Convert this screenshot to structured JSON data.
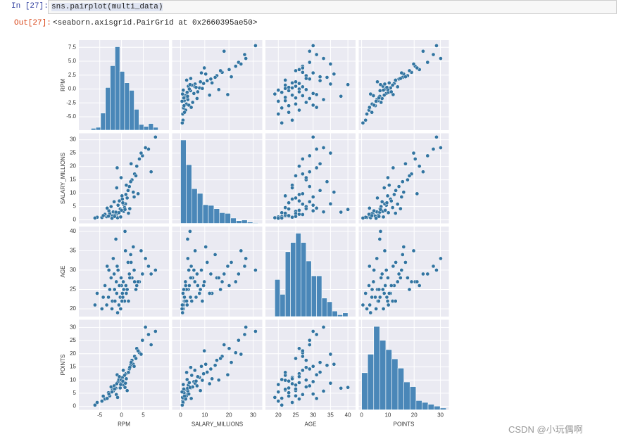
{
  "cell": {
    "prompt_in": "In  [27]:",
    "code": "sns.pairplot(multi_data)",
    "prompt_out": "Out[27]:",
    "output": "<seaborn.axisgrid.PairGrid at 0x2660395ae50>"
  },
  "watermark": "CSDN @小玩偶啊",
  "chart_data": {
    "type": "pairplot",
    "color": "#3274a1",
    "hist_color": "#4a87b8",
    "panel_color": "#eaeaf2",
    "grid": true,
    "variables": [
      {
        "name": "RPM",
        "xlim": [
          -9.8,
          10.9
        ],
        "ylim": [
          -7.4,
          8.8
        ],
        "xticks": [
          -5,
          0,
          5
        ],
        "yticks": [
          {
            "value": -5,
            "label": "-5.0"
          },
          -2.5,
          {
            "value": 0,
            "label": "0.0"
          },
          2.5,
          {
            "value": 5,
            "label": "5.0"
          },
          7.5
        ],
        "values": [
          -2.1,
          0.5,
          -1.2,
          1.8,
          3.5,
          -3.4,
          -0.8,
          0.2,
          2.4,
          -4.5,
          6.2,
          -1.9,
          1.0,
          -0.3,
          4.8,
          -2.7,
          0.9,
          -1.5,
          3.0,
          -5.6,
          1.5,
          -0.6,
          7.8,
          -2.4,
          0.0,
          2.1,
          -3.0,
          1.3,
          -1.0,
          4.1,
          -0.9,
          0.7,
          -3.8,
          2.7,
          -1.7,
          5.5,
          -0.2,
          1.1,
          -2.9,
          0.4,
          -6.1,
          3.3,
          -1.3,
          0.1,
          1.9,
          -4.2,
          2.2,
          -0.5,
          6.8,
          -2.2,
          0.8,
          -1.1,
          3.8,
          -3.3,
          1.6,
          -0.1,
          4.5,
          -1.6,
          0.3,
          2.9
        ],
        "hist": {
          "bins": [
            -7.0,
            -5.9,
            -4.8,
            -3.7,
            -2.6,
            -1.5,
            -0.4,
            0.7,
            1.8,
            2.9,
            4.0,
            5.1,
            6.2,
            7.3,
            8.4
          ],
          "counts": [
            2,
            3,
            18,
            45,
            68,
            88,
            62,
            50,
            42,
            22,
            6,
            4,
            7,
            3
          ]
        }
      },
      {
        "name": "SALARY_MILLIONS",
        "xlim": [
          -3.5,
          33.8
        ],
        "ylim": [
          -1.3,
          32.4
        ],
        "xticks": [
          0,
          10,
          20,
          30
        ],
        "yticks": [
          0,
          5,
          10,
          15,
          20,
          25,
          30
        ],
        "values": [
          1.5,
          3.2,
          2.0,
          12.5,
          20.1,
          1.2,
          5.5,
          7.8,
          15.0,
          0.9,
          26.5,
          3.0,
          9.5,
          4.1,
          24.0,
          2.4,
          6.0,
          1.8,
          17.2,
          1.0,
          11.0,
          2.7,
          31.0,
          5.0,
          3.6,
          14.3,
          1.4,
          8.2,
          19.5,
          22.8,
          0.8,
          4.6,
          2.1,
          10.4,
          6.8,
          27.0,
          1.1,
          13.0,
          3.4,
          5.9,
          0.7,
          16.5,
          2.9,
          9.0,
          4.2,
          1.6,
          21.0,
          7.1,
          18.0,
          0.6,
          3.9,
          12.0,
          9.8,
          4.4,
          2.5,
          15.8,
          25.0,
          1.3,
          6.4,
          8.6
        ],
        "hist": {
          "bins": [
            0,
            2.3,
            4.6,
            6.9,
            9.2,
            11.5,
            13.8,
            16.1,
            18.4,
            20.7,
            23,
            25.3,
            27.6,
            29.9,
            32.2
          ],
          "counts": [
            125,
            88,
            52,
            45,
            28,
            27,
            22,
            16,
            15,
            8,
            4,
            5,
            2,
            1
          ]
        }
      },
      {
        "name": "AGE",
        "xlim": [
          16.3,
          42.2
        ],
        "ylim": [
          18,
          41.25
        ],
        "xticks": [
          20,
          25,
          30,
          35,
          40
        ],
        "yticks": [
          20,
          25,
          30,
          35,
          40
        ],
        "values": [
          22,
          25,
          27,
          29,
          26,
          21,
          30,
          24,
          28,
          20,
          31,
          33,
          26,
          23,
          29,
          25,
          35,
          22,
          27,
          24,
          32,
          21,
          30,
          28,
          26,
          34,
          23,
          25,
          31,
          27,
          19,
          22,
          26,
          36,
          29,
          33,
          20,
          24,
          30,
          27,
          21,
          25,
          38,
          22,
          28,
          23,
          32,
          26,
          29,
          20,
          40,
          24,
          27,
          31,
          22,
          28,
          35,
          25,
          23,
          30
        ],
        "hist": {
          "bins": [
            19,
            20.5,
            22,
            23.5,
            25,
            26.5,
            28,
            29.5,
            31,
            32.5,
            34,
            35.5,
            37,
            38.5,
            40
          ],
          "counts": [
            20,
            12,
            35,
            40,
            45,
            40,
            30,
            22,
            22,
            10,
            8,
            3,
            1,
            2
          ]
        }
      },
      {
        "name": "POINTS",
        "xlim": [
          -1.1,
          33.2
        ],
        "ylim": [
          -1.3,
          32.9
        ],
        "xticks": [
          0,
          10,
          20,
          30
        ],
        "yticks": [
          0,
          5,
          10,
          15,
          20,
          25,
          30
        ],
        "values": [
          6.2,
          8.1,
          4.5,
          14.2,
          22.0,
          3.1,
          9.4,
          11.0,
          17.5,
          2.0,
          27.3,
          5.8,
          12.4,
          7.0,
          25.1,
          4.0,
          8.8,
          6.5,
          19.0,
          1.5,
          13.0,
          10.2,
          28.5,
          7.4,
          9.0,
          15.6,
          5.2,
          6.0,
          12.0,
          20.4,
          3.4,
          11.8,
          2.8,
          16.0,
          7.8,
          30.1,
          8.3,
          10.5,
          4.7,
          13.7,
          0.5,
          18.2,
          6.9,
          9.9,
          14.8,
          3.9,
          16.7,
          11.3,
          23.4,
          5.5,
          7.2,
          8.6,
          21.1,
          3.0,
          12.9,
          10.0,
          19.8,
          6.6,
          9.6,
          15.2
        ],
        "hist": {
          "bins": [
            0,
            2.3,
            4.6,
            6.9,
            9.2,
            11.5,
            13.8,
            16.1,
            18.4,
            20.7,
            23,
            25.3,
            27.6,
            29.9,
            32.2
          ],
          "counts": [
            40,
            60,
            90,
            75,
            65,
            55,
            45,
            30,
            25,
            10,
            8,
            6,
            4,
            2
          ]
        }
      }
    ]
  }
}
